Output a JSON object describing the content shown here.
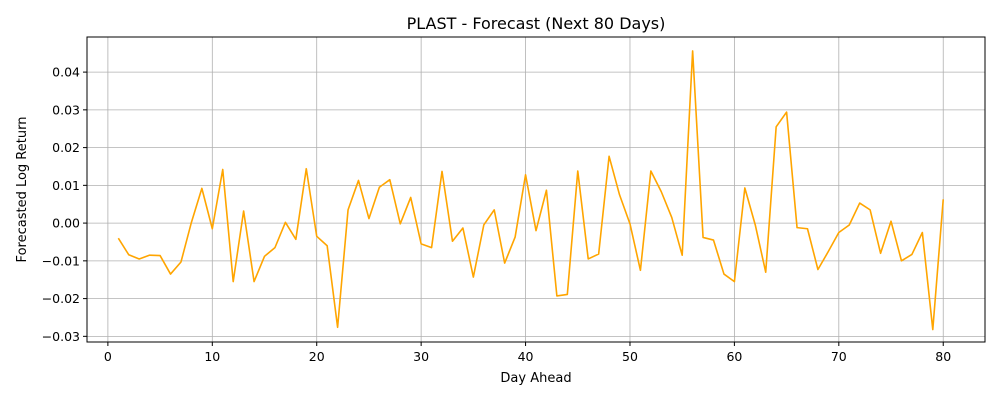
{
  "chart_data": {
    "type": "line",
    "title": "PLAST - Forecast (Next 80 Days)",
    "xlabel": "Day Ahead",
    "ylabel": "Forecasted Log Return",
    "xlim": [
      -2,
      84
    ],
    "ylim": [
      -0.0315,
      0.0493
    ],
    "x_ticks": [
      0,
      10,
      20,
      30,
      40,
      50,
      60,
      70,
      80
    ],
    "y_ticks": [
      -0.03,
      -0.02,
      -0.01,
      0.0,
      0.01,
      0.02,
      0.03,
      0.04
    ],
    "y_tick_labels": [
      "−0.03",
      "−0.02",
      "−0.01",
      "0.00",
      "0.01",
      "0.02",
      "0.03",
      "0.04"
    ],
    "grid": true,
    "line_color": "#ffa500",
    "series": [
      {
        "x": [
          1,
          2,
          3,
          4,
          5,
          6,
          7,
          8,
          9,
          10,
          11,
          12,
          13,
          14,
          15,
          16,
          17,
          18,
          19,
          20,
          21,
          22,
          23,
          24,
          25,
          26,
          27,
          28,
          29,
          30,
          31,
          32,
          33,
          34,
          35,
          36,
          37,
          38,
          39,
          40,
          41,
          42,
          43,
          44,
          45,
          46,
          47,
          48,
          49,
          50,
          51,
          52,
          53,
          54,
          55,
          56,
          57,
          58,
          59,
          60,
          61,
          62,
          63,
          64,
          65,
          66,
          67,
          68,
          69,
          70,
          71,
          72,
          73,
          74,
          75,
          76,
          77,
          78,
          79,
          80
        ],
        "values": [
          -0.004,
          -0.0084,
          -0.0095,
          -0.0085,
          -0.0086,
          -0.0135,
          -0.0103,
          0.0002,
          0.0092,
          -0.0015,
          0.0142,
          -0.0155,
          0.0032,
          -0.0155,
          -0.0088,
          -0.0065,
          0.0002,
          -0.0043,
          0.0144,
          -0.0035,
          -0.006,
          -0.0276,
          0.0035,
          0.0113,
          0.0012,
          0.0095,
          0.0115,
          -0.0002,
          0.0068,
          -0.0055,
          -0.0065,
          0.0137,
          -0.0048,
          -0.0013,
          -0.0143,
          -0.0005,
          0.0035,
          -0.0106,
          -0.0037,
          0.0128,
          -0.002,
          0.0087,
          -0.0193,
          -0.0189,
          0.0138,
          -0.0095,
          -0.0082,
          0.0177,
          0.0075,
          -0.0002,
          -0.0125,
          0.0138,
          0.0083,
          0.0015,
          -0.0085,
          0.0456,
          -0.0038,
          -0.0045,
          -0.0135,
          -0.0155,
          0.0093,
          -0.0005,
          -0.013,
          0.0255,
          0.0294,
          -0.0012,
          -0.0015,
          -0.0123,
          -0.0075,
          -0.0025,
          -0.0005,
          0.0053,
          0.0035,
          -0.008,
          0.0005,
          -0.01,
          -0.0083,
          -0.0025,
          -0.0282,
          0.0063
        ]
      }
    ]
  }
}
